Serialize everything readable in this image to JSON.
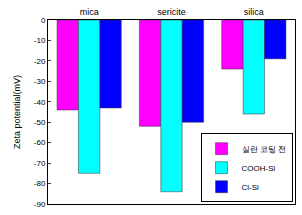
{
  "chart_data": {
    "type": "bar",
    "y_label": "Zeta potential(mV)",
    "categories": [
      "mica",
      "sericite",
      "silica"
    ],
    "series": [
      {
        "name": "실란 코팅 전",
        "color": "#ff00ff",
        "values": [
          -44,
          -52,
          -24
        ]
      },
      {
        "name": "COOH-Si",
        "color": "#00ffff",
        "values": [
          -75,
          -84,
          -46
        ]
      },
      {
        "name": "Cl-Si",
        "color": "#0000ff",
        "values": [
          -43,
          -50,
          -19
        ]
      }
    ],
    "ylim": [
      -90,
      0
    ],
    "yticks": [
      -90,
      -80,
      -70,
      -60,
      -50,
      -40,
      -30,
      -20,
      -10,
      0
    ],
    "grid": false,
    "legend": "lower right"
  }
}
